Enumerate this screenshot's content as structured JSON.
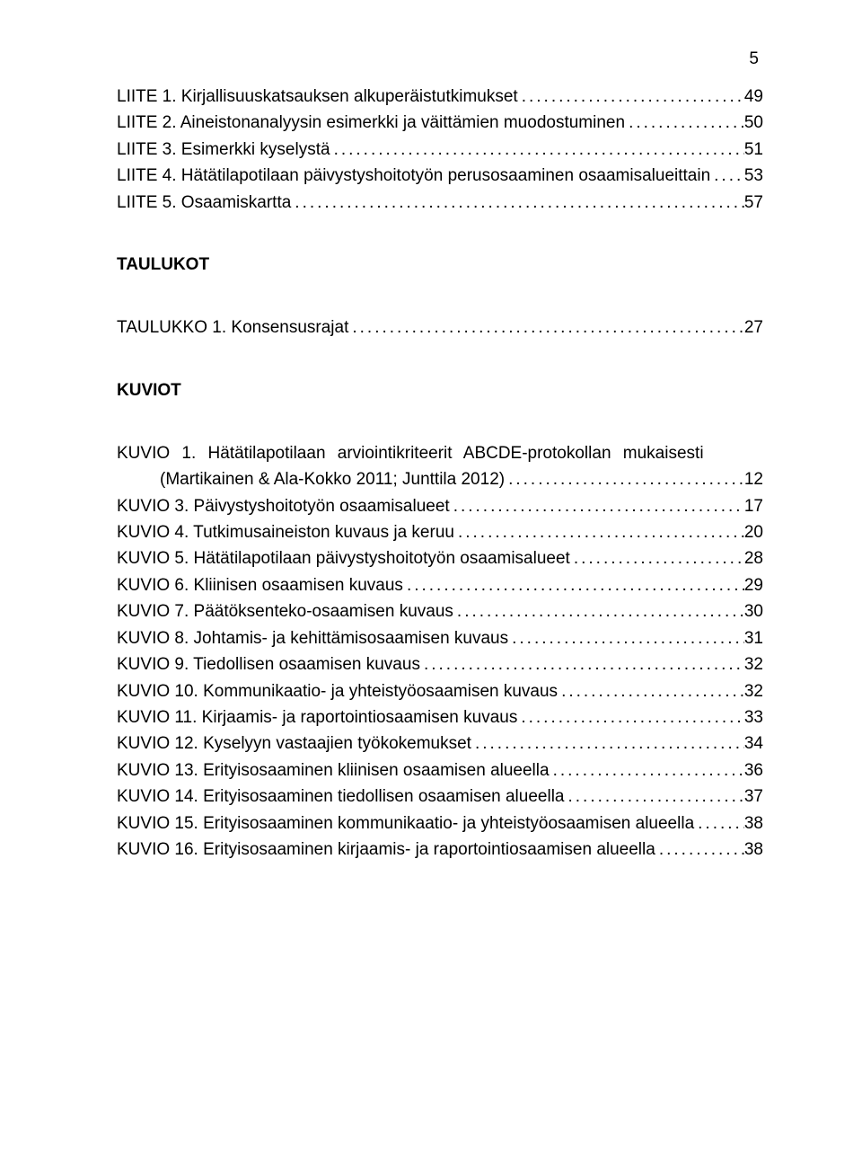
{
  "page_number": "5",
  "text_color": "#000000",
  "background_color": "#ffffff",
  "font_size_pt": 19,
  "font_family": "Arial",
  "liite_entries": [
    {
      "label": "LIITE 1. Kirjallisuuskatsauksen alkuperäistutkimukset",
      "page": "49"
    },
    {
      "label": "LIITE 2. Aineistonanalyysin esimerkki ja väittämien muodostuminen",
      "page": "50"
    },
    {
      "label": "LIITE 3. Esimerkki kyselystä",
      "page": "51"
    },
    {
      "label": "LIITE 4. Hätätilapotilaan päivystyshoitotyön perusosaaminen osaamisalueittain",
      "page": "53"
    },
    {
      "label": "LIITE 5. Osaamiskartta",
      "page": "57"
    }
  ],
  "taulukot_title": "TAULUKOT",
  "taulukko_entries": [
    {
      "label": "TAULUKKO 1. Konsensusrajat",
      "page": "27"
    }
  ],
  "kuviot_title": "KUVIOT",
  "kuvio1_line1": "KUVIO 1. Hätätilapotilaan arviointikriteerit ABCDE-protokollan mukaisesti",
  "kuvio1_line2_label": "(Martikainen & Ala-Kokko 2011; Junttila 2012)",
  "kuvio1_page": "12",
  "kuvio_entries": [
    {
      "label": "KUVIO 3. Päivystyshoitotyön osaamisalueet",
      "page": "17"
    },
    {
      "label": "KUVIO 4. Tutkimusaineiston kuvaus ja keruu",
      "page": "20"
    },
    {
      "label": "KUVIO 5. Hätätilapotilaan päivystyshoitotyön osaamisalueet",
      "page": "28"
    },
    {
      "label": "KUVIO 6. Kliinisen osaamisen kuvaus",
      "page": "29"
    },
    {
      "label": "KUVIO 7. Päätöksenteko-osaamisen kuvaus",
      "page": "30"
    },
    {
      "label": "KUVIO 8. Johtamis- ja kehittämisosaamisen kuvaus",
      "page": "31"
    },
    {
      "label": "KUVIO 9. Tiedollisen osaamisen kuvaus",
      "page": "32"
    },
    {
      "label": "KUVIO 10. Kommunikaatio- ja yhteistyöosaamisen kuvaus",
      "page": "32"
    },
    {
      "label": "KUVIO 11. Kirjaamis- ja raportointiosaamisen kuvaus",
      "page": "33"
    },
    {
      "label": "KUVIO 12. Kyselyyn vastaajien työkokemukset",
      "page": "34"
    },
    {
      "label": "KUVIO 13. Erityisosaaminen kliinisen osaamisen alueella",
      "page": "36"
    },
    {
      "label": "KUVIO 14. Erityisosaaminen tiedollisen osaamisen alueella",
      "page": "37"
    },
    {
      "label": "KUVIO 15. Erityisosaaminen kommunikaatio- ja yhteistyöosaamisen alueella",
      "page": "38"
    },
    {
      "label": "KUVIO 16. Erityisosaaminen kirjaamis- ja raportointiosaamisen alueella",
      "page": "38"
    }
  ]
}
